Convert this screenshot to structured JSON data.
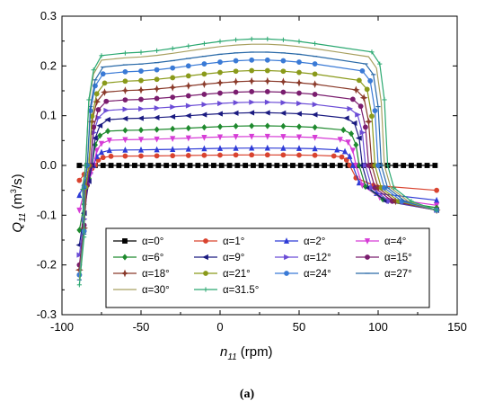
{
  "chart_data": {
    "type": "line",
    "xlabel": "n11 (rpm)",
    "xlabel_main": "n",
    "xlabel_sub": "11",
    "xlabel_unit": "(rpm)",
    "ylabel": "Q11 (m3/s)",
    "ylabel_main": "Q",
    "ylabel_sub": "11",
    "ylabel_unit_pre": "(m",
    "ylabel_unit_sup": "3",
    "ylabel_unit_post": "/s)",
    "xlim": [
      -100,
      150
    ],
    "ylim": [
      -0.3,
      0.3
    ],
    "xticks": [
      "-100",
      "-50",
      "0",
      "50",
      "100",
      "150"
    ],
    "yticks": [
      "0.3",
      "0.2",
      "0.1",
      "0.0",
      "-0.1",
      "-0.2",
      "-0.3"
    ],
    "grid": false,
    "legend_position": "bottom-center",
    "caption": "(a)",
    "series": [
      {
        "name": "α=0°",
        "color": "#000000",
        "marker": "square",
        "plateau": 0.0,
        "turn_low": -79,
        "turn_high": 80,
        "left_end": -0.0,
        "right_end": 0.0
      },
      {
        "name": "α=1°",
        "color": "#d9432f",
        "marker": "circle",
        "plateau": 0.02,
        "turn_low": -79,
        "turn_high": 82,
        "left_end": -0.03,
        "right_end": -0.05
      },
      {
        "name": "α=2°",
        "color": "#2e3bd6",
        "marker": "triangle-up",
        "plateau": 0.033,
        "turn_low": -80,
        "turn_high": 84,
        "left_end": -0.06,
        "right_end": -0.07
      },
      {
        "name": "α=4°",
        "color": "#d63cd6",
        "marker": "triangle-down",
        "plateau": 0.055,
        "turn_low": -80,
        "turn_high": 86,
        "left_end": -0.09,
        "right_end": -0.08
      },
      {
        "name": "α=6°",
        "color": "#1f8a2e",
        "marker": "diamond",
        "plateau": 0.075,
        "turn_low": -81,
        "turn_high": 88,
        "left_end": -0.13,
        "right_end": -0.085
      },
      {
        "name": "α=9°",
        "color": "#1a1a80",
        "marker": "triangle-left",
        "plateau": 0.1,
        "turn_low": -81,
        "turn_high": 90,
        "left_end": -0.16,
        "right_end": -0.09
      },
      {
        "name": "α=12°",
        "color": "#6b4cd6",
        "marker": "triangle-right",
        "plateau": 0.12,
        "turn_low": -82,
        "turn_high": 92,
        "left_end": -0.18,
        "right_end": -0.09
      },
      {
        "name": "α=15°",
        "color": "#7a1d6e",
        "marker": "circle",
        "plateau": 0.14,
        "turn_low": -82,
        "turn_high": 94,
        "left_end": -0.2,
        "right_end": -0.09
      },
      {
        "name": "α=18°",
        "color": "#8a3a2a",
        "marker": "star",
        "plateau": 0.16,
        "turn_low": -83,
        "turn_high": 96,
        "left_end": -0.21,
        "right_end": -0.09
      },
      {
        "name": "α=21°",
        "color": "#8a9a1a",
        "marker": "circle",
        "plateau": 0.18,
        "turn_low": -83,
        "turn_high": 98,
        "left_end": -0.22,
        "right_end": -0.09
      },
      {
        "name": "α=24°",
        "color": "#3a7ad6",
        "marker": "circle",
        "plateau": 0.2,
        "turn_low": -84,
        "turn_high": 100,
        "left_end": -0.22,
        "right_end": -0.09
      },
      {
        "name": "α=27°",
        "color": "#2a6aa8",
        "marker": "dash",
        "plateau": 0.215,
        "turn_low": -84,
        "turn_high": 102,
        "left_end": -0.23,
        "right_end": -0.09
      },
      {
        "name": "α=30°",
        "color": "#a8a060",
        "marker": "none",
        "plateau": 0.23,
        "turn_low": -85,
        "turn_high": 104,
        "left_end": -0.23,
        "right_end": -0.09
      },
      {
        "name": "α=31.5°",
        "color": "#2aa870",
        "marker": "plus",
        "plateau": 0.24,
        "turn_low": -85,
        "turn_high": 106,
        "left_end": -0.24,
        "right_end": -0.09
      }
    ]
  }
}
